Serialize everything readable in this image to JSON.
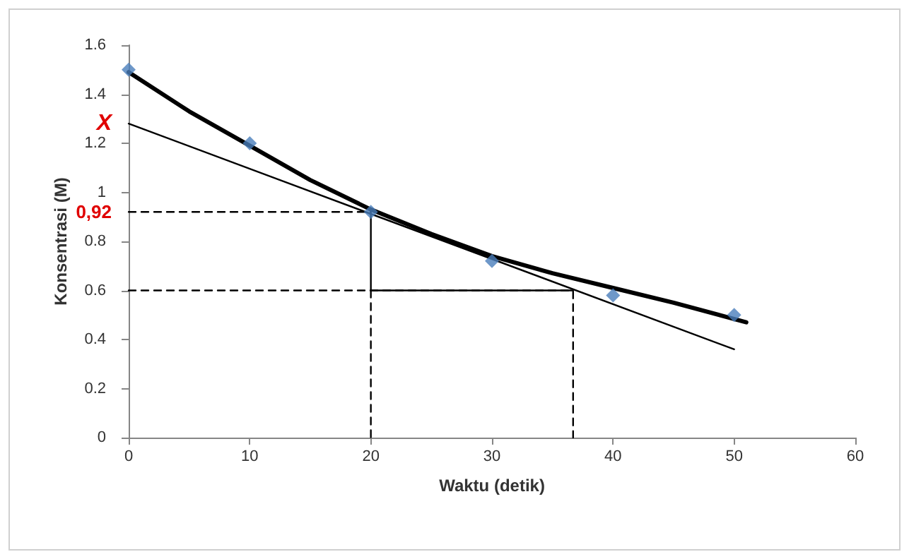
{
  "chart_data": {
    "type": "scatter",
    "xlabel": "Waktu (detik)",
    "ylabel": "Konsentrasi (M)",
    "xlim": [
      0,
      60
    ],
    "xticks": [
      0,
      10,
      20,
      30,
      40,
      50,
      60
    ],
    "ylim": [
      0,
      1.6
    ],
    "yticks": [
      0,
      0.2,
      0.4,
      0.6,
      0.8,
      1,
      1.2,
      1.4,
      1.6
    ],
    "grid": false,
    "annotations": [
      {
        "text": "X",
        "x": 0,
        "y": 1.28
      },
      {
        "text": "0,92",
        "x": 0,
        "y": 0.92
      }
    ],
    "series": [
      {
        "marker": "diamond",
        "color": "#4a7ebb",
        "x": [
          0,
          10,
          20,
          30,
          40,
          50
        ],
        "values": [
          1.5,
          1.2,
          0.92,
          0.72,
          0.58,
          0.5
        ]
      },
      {
        "type": "line",
        "marker": "none",
        "line_style": "solid",
        "color": "#000000",
        "x": [
          0,
          5,
          10,
          15,
          20,
          25,
          30,
          35,
          40,
          45,
          51
        ],
        "values": [
          1.49,
          1.33,
          1.19,
          1.05,
          0.93,
          0.83,
          0.74,
          0.67,
          0.61,
          0.55,
          0.47
        ]
      },
      {
        "type": "line",
        "marker": "none",
        "line_style": "solid",
        "color": "#000000",
        "x": [
          0,
          50
        ],
        "values": [
          1.28,
          0.36
        ]
      },
      {
        "type": "line",
        "marker": "none",
        "line_style": "solid",
        "color": "#000000",
        "x": [
          20,
          20,
          36.7
        ],
        "values": [
          0.92,
          0.6,
          0.6
        ]
      },
      {
        "type": "line",
        "marker": "none",
        "line_style": "dashed",
        "color": "#000000",
        "x": [
          0,
          20
        ],
        "values": [
          0.92,
          0.92
        ]
      },
      {
        "type": "line",
        "marker": "none",
        "line_style": "dashed",
        "color": "#000000",
        "x": [
          20,
          20
        ],
        "values": [
          0.6,
          0
        ]
      },
      {
        "type": "line",
        "marker": "none",
        "line_style": "dashed",
        "color": "#000000",
        "x": [
          0,
          36.7,
          36.7
        ],
        "values": [
          0.6,
          0.6,
          0
        ]
      }
    ]
  }
}
